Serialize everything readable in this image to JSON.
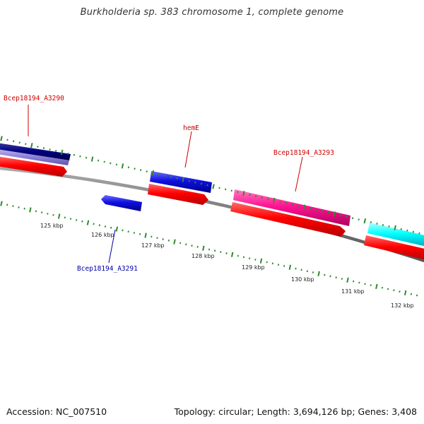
{
  "title": "Burkholderia sp. 383 chromosome 1, complete genome",
  "footer": {
    "accession": "Accession: NC_007510",
    "topology": "Topology: circular; Length: 3,694,126 bp; Genes: 3,408"
  },
  "ticks": [
    {
      "label": "125 kbp"
    },
    {
      "label": "126 kbp"
    },
    {
      "label": "127 kbp"
    },
    {
      "label": "128 kbp"
    },
    {
      "label": "129 kbp"
    },
    {
      "label": "130 kbp"
    },
    {
      "label": "131 kbp"
    },
    {
      "label": "132 kbp"
    }
  ],
  "gene_labels": [
    {
      "text": "Bcep18194_A3290",
      "color": "#cc0000"
    },
    {
      "text": "hemE",
      "color": "#cc0000"
    },
    {
      "text": "Bcep18194_A3293",
      "color": "#cc0000"
    },
    {
      "text": "Bcep18194_A3291",
      "color": "#0000aa"
    }
  ],
  "colors": {
    "backbone": "#777777",
    "tick": "#2e8b2e",
    "cds": "#ff0000",
    "navy_gene": "#000080",
    "lavender_gene": "#8a7fd6",
    "blue_gene": "#1010e0",
    "pink_gene": "#ff1493",
    "cyan_gene": "#00ffff"
  }
}
